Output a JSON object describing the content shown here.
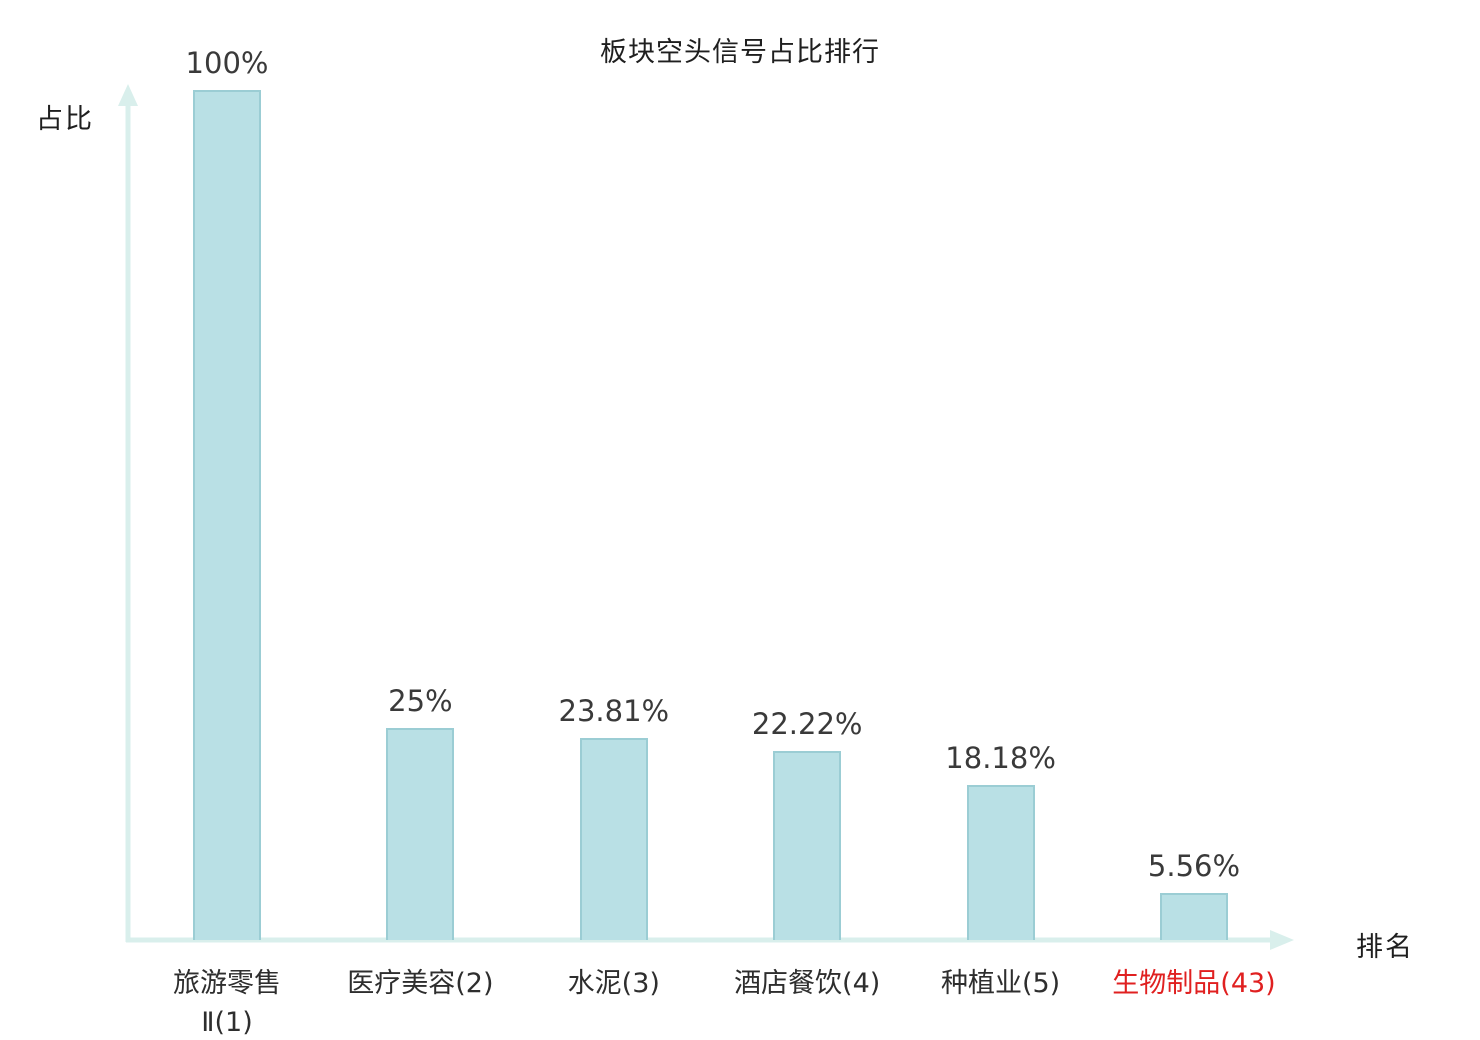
{
  "chart_data": {
    "type": "bar",
    "title": "板块空头信号占比排行",
    "xlabel": "排名",
    "ylabel": "占比",
    "categories": [
      "旅游零售Ⅱ(1)",
      "医疗美容(2)",
      "水泥(3)",
      "酒店餐饮(4)",
      "种植业(5)",
      "生物制品(43)"
    ],
    "categories_display": [
      [
        "旅游零售",
        "Ⅱ(1)"
      ],
      [
        "医疗美容(2)"
      ],
      [
        "水泥(3)"
      ],
      [
        "酒店餐饮(4)"
      ],
      [
        "种植业(5)"
      ],
      [
        "生物制品(43)"
      ]
    ],
    "values": [
      100,
      25,
      23.81,
      22.22,
      18.18,
      5.56
    ],
    "value_labels": [
      "100%",
      "25%",
      "23.81%",
      "22.22%",
      "18.18%",
      "5.56%"
    ],
    "ylim": [
      0,
      100
    ],
    "grid": false,
    "legend": "none",
    "highlight_index": 5,
    "colors": {
      "bar_fill": "#b9e0e5",
      "bar_border": "#9bcdd4",
      "axis": "#d9efec",
      "text": "#3a3a3a",
      "highlight_text": "#e02020"
    }
  }
}
